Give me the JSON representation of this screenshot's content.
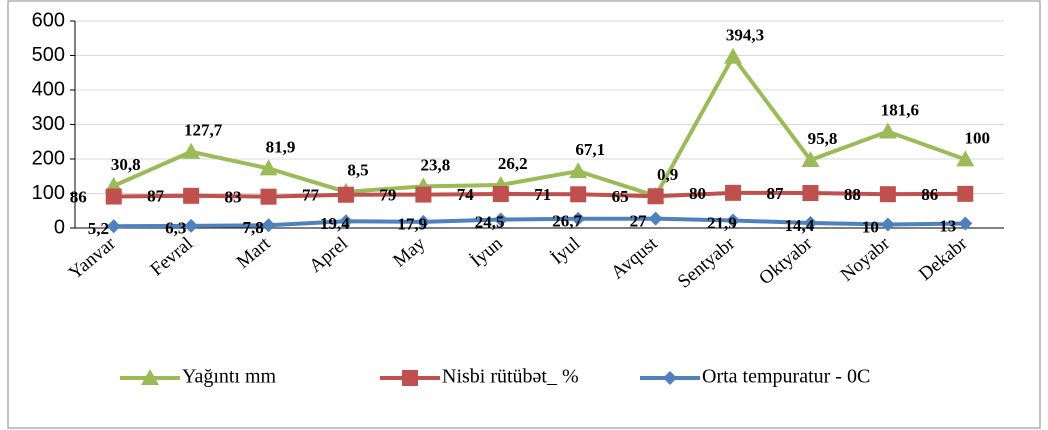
{
  "chart_data": {
    "type": "line",
    "stacked": true,
    "categories": [
      "Yanvar",
      "Fevral",
      "Mart",
      "Aprel",
      "May",
      "İyun",
      "İyul",
      "Avqust",
      "Sentyabr",
      "Oktyabr",
      "Noyabr",
      "Dekabr"
    ],
    "series": [
      {
        "name": "Yağıntı mm",
        "color": "#9bbb59",
        "marker": "triangle",
        "values": [
          30.8,
          127.7,
          81.9,
          8.5,
          23.8,
          26.2,
          67.1,
          0.9,
          394.3,
          95.8,
          181.6,
          100
        ],
        "value_labels": [
          "30,8",
          "127,7",
          "81,9",
          "8,5",
          "23,8",
          "26,2",
          "67,1",
          "0,9",
          "394,3",
          "95,8",
          "181,6",
          "100"
        ]
      },
      {
        "name": "Nisbi rütübət_ %",
        "color": "#c0504d",
        "marker": "square",
        "values": [
          86,
          87,
          83,
          77,
          79,
          74,
          71,
          65,
          80,
          87,
          88,
          86
        ]
      },
      {
        "name": "Orta tempuratur - 0C",
        "color": "#4f81bd",
        "marker": "diamond",
        "values": [
          5.2,
          6.3,
          7.8,
          19.4,
          17.9,
          24.5,
          26.7,
          27,
          21.9,
          14.4,
          10,
          13
        ],
        "value_labels": [
          "5,2",
          "6,3",
          "7,8",
          "19,4",
          "17,9",
          "24,5",
          "26,7",
          "27",
          "21,9",
          "14,4",
          "10",
          "13"
        ]
      }
    ],
    "ylim": [
      0,
      600
    ],
    "yticks": [
      0,
      100,
      200,
      300,
      400,
      500,
      600
    ],
    "grid": true,
    "legend": "bottom"
  }
}
